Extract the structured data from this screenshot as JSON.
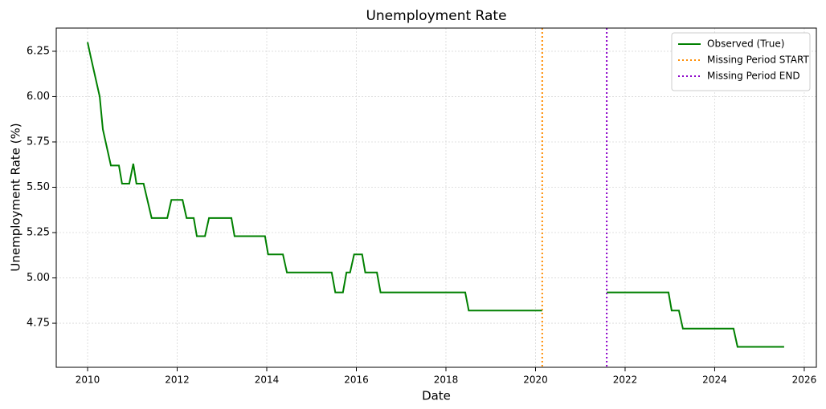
{
  "chart_data": {
    "type": "line",
    "title": "Unemployment Rate",
    "x_label": "Date",
    "y_label": "Unemployment Rate (%)",
    "x": [
      2010.0,
      2010.07,
      2010.27,
      2010.34,
      2010.52,
      2010.7,
      2010.77,
      2010.93,
      2011.02,
      2011.09,
      2011.25,
      2011.43,
      2011.78,
      2011.87,
      2012.12,
      2012.21,
      2012.37,
      2012.44,
      2012.62,
      2012.71,
      2013.21,
      2013.28,
      2013.96,
      2014.03,
      2014.36,
      2014.45,
      2015.45,
      2015.53,
      2015.7,
      2015.78,
      2015.86,
      2015.95,
      2016.13,
      2016.2,
      2016.46,
      2016.54,
      2018.43,
      2018.51,
      2020.15,
      null,
      2021.59,
      2022.97,
      2023.04,
      2023.2,
      2023.29,
      2024.42,
      2024.51,
      2025.55
    ],
    "series": [
      {
        "name": "Observed (True)",
        "color": "#008000",
        "values": [
          6.3,
          6.22,
          6.0,
          5.82,
          5.62,
          5.62,
          5.52,
          5.52,
          5.63,
          5.52,
          5.52,
          5.33,
          5.33,
          5.43,
          5.43,
          5.33,
          5.33,
          5.23,
          5.23,
          5.33,
          5.33,
          5.23,
          5.23,
          5.13,
          5.13,
          5.03,
          5.03,
          4.92,
          4.92,
          5.03,
          5.03,
          5.13,
          5.13,
          5.03,
          5.03,
          4.92,
          4.92,
          4.82,
          4.82,
          null,
          4.92,
          4.92,
          4.82,
          4.82,
          4.72,
          4.72,
          4.62,
          4.62
        ]
      }
    ],
    "vlines": [
      {
        "name": "Missing Period START",
        "color": "#ff8c00",
        "x": 2020.15
      },
      {
        "name": "Missing Period END",
        "color": "#8b00c8",
        "x": 2021.59
      }
    ],
    "xlim": [
      2009.3,
      2026.27
    ],
    "ylim": [
      4.507,
      6.378
    ],
    "xticks": [
      2010,
      2012,
      2014,
      2016,
      2018,
      2020,
      2022,
      2024,
      2026
    ],
    "yticks": [
      4.75,
      {
        "value": 5,
        "label": "5.00"
      },
      5.25,
      {
        "value": 5.5,
        "label": "5.50"
      },
      5.75,
      {
        "value": 6,
        "label": "6.00"
      },
      6.25
    ],
    "grid": true,
    "legend": "upper right"
  }
}
